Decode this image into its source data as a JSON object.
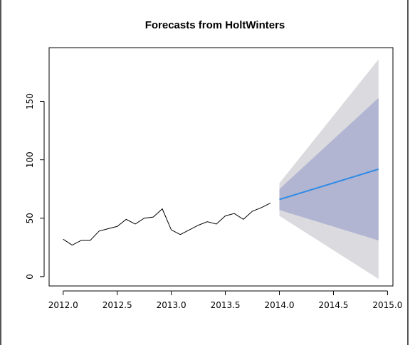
{
  "chart_data": {
    "type": "line",
    "title": "Forecasts from HoltWinters",
    "xlabel": "",
    "ylabel": "",
    "xlim": [
      2011.87,
      2015.05
    ],
    "ylim": [
      -8,
      196
    ],
    "x_ticks": [
      2012.0,
      2012.5,
      2013.0,
      2013.5,
      2014.0,
      2014.5,
      2015.0
    ],
    "x_tick_labels": [
      "2012.0",
      "2012.5",
      "2013.0",
      "2013.5",
      "2014.0",
      "2014.5",
      "2015.0"
    ],
    "y_ticks": [
      0,
      50,
      100,
      150
    ],
    "y_tick_labels": [
      "0",
      "50",
      "100",
      "150"
    ],
    "grid": false,
    "series": [
      {
        "role": "observed",
        "color": "#000000",
        "x": [
          2012.0,
          2012.083,
          2012.167,
          2012.25,
          2012.333,
          2012.417,
          2012.5,
          2012.583,
          2012.667,
          2012.75,
          2012.833,
          2012.917,
          2013.0,
          2013.083,
          2013.167,
          2013.25,
          2013.333,
          2013.417,
          2013.5,
          2013.583,
          2013.667,
          2013.75,
          2013.833,
          2013.917
        ],
        "y": [
          32,
          27,
          31,
          31,
          39,
          41,
          43,
          49,
          45,
          50,
          51,
          58,
          40,
          36,
          40,
          44,
          47,
          45,
          52,
          54,
          49,
          56,
          59,
          63
        ]
      },
      {
        "role": "forecast",
        "color": "#2E8AE6",
        "x": [
          2014.0,
          2014.917
        ],
        "y": [
          66,
          92
        ]
      }
    ],
    "bands": [
      {
        "level": "95%",
        "color": "#DBDBDF",
        "x": [
          2014.0,
          2014.917
        ],
        "upper": [
          80,
          186
        ],
        "lower": [
          52,
          -2
        ]
      },
      {
        "level": "80%",
        "color": "#B1B5D2",
        "x": [
          2014.0,
          2014.917
        ],
        "upper": [
          75,
          153
        ],
        "lower": [
          57,
          31
        ]
      }
    ]
  }
}
